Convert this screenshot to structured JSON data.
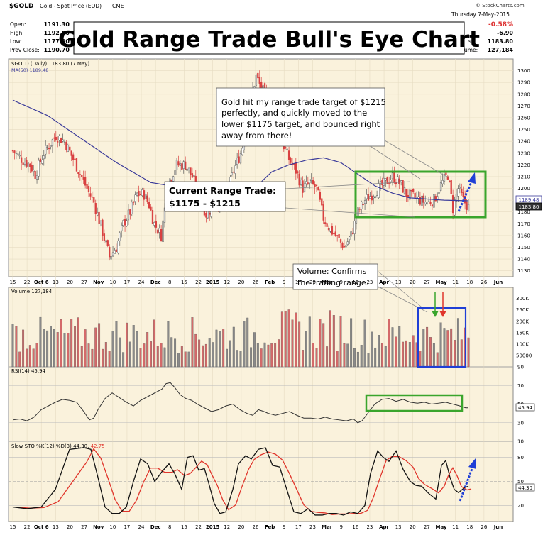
{
  "header": {
    "ticker": "$GOLD",
    "description": "Gold - Spot Price (EOD)",
    "exchange": "CME",
    "credit": "© StockCharts.com",
    "date": "Thursday  7-May-2015",
    "ohlc": [
      {
        "label": "Open:",
        "value": "1191.30"
      },
      {
        "label": "High:",
        "value": "1192.00"
      },
      {
        "label": "Low:",
        "value": "1177.90"
      },
      {
        "label": "Prev Close:",
        "value": "1190.70"
      }
    ],
    "change_pct": "-0.58%",
    "change": "-6.90",
    "last_label": "st:",
    "last": "1183.80",
    "volume_label": "ume:",
    "volume": "127,184"
  },
  "title": "Gold Range Trade Bull's Eye Chart",
  "legend": {
    "price": "$GOLD (Daily) 1183.80 (7 May)",
    "ma": "MA(50) 1189.48",
    "volume": "Volume 127,184",
    "rsi": "RSI(14) 45.94",
    "sto_a": "Slow STO %K(12) %D(3) 44.30, ",
    "sto_b": "42.75"
  },
  "annotations": {
    "target_lines": [
      "Gold hit my range trade target of $1215",
      "perfectly, and quickly moved to the",
      "lower $1175 target, and bounced right",
      "away from there!"
    ],
    "range_lines": [
      "Current Range Trade:",
      "$1175 - $1215"
    ],
    "volume_lines": [
      "Volume: Confirms",
      "the trading range."
    ]
  },
  "price_labels": {
    "ma": "1189.48",
    "last": "1183.80"
  },
  "rsi_label": "45.94",
  "sto_label": "44.30",
  "colors": {
    "panel": "#faf2dc",
    "up": "#5a5a5a",
    "down": "#d94040",
    "ma": "#3b3b9a",
    "green_box": "#3aa52c",
    "blue_box": "#1f3fd6",
    "arrow": "#1f3fd6",
    "rsi": "#333333",
    "stoK": "#111111",
    "stoD": "#e0352b",
    "vol_up": "#8a8a8a",
    "vol_down": "#d46a6a"
  },
  "chart_data": [
    {
      "type": "candlestick",
      "id": "price",
      "ylim": [
        1125,
        1310
      ],
      "y_ticks": [
        1130,
        1140,
        1150,
        1160,
        1170,
        1180,
        1190,
        1200,
        1210,
        1220,
        1230,
        1240,
        1250,
        1260,
        1270,
        1280,
        1290,
        1300
      ],
      "x_labels": [
        "15",
        "22",
        "Oct 6",
        "13",
        "20",
        "27",
        "Nov",
        "10",
        "17",
        "24",
        "Dec",
        "8",
        "15",
        "22",
        "2015",
        "12",
        "20",
        "26",
        "Feb",
        "9",
        "17",
        "23",
        "Mar",
        "9",
        "16",
        "23",
        "Apr",
        "13",
        "20",
        "27",
        "May",
        "11",
        "18",
        "26",
        "Jun"
      ],
      "close_points": [
        [
          0,
          1232
        ],
        [
          5,
          1225
        ],
        [
          10,
          1220
        ],
        [
          13,
          1212
        ],
        [
          18,
          1230
        ],
        [
          25,
          1245
        ],
        [
          30,
          1240
        ],
        [
          36,
          1222
        ],
        [
          42,
          1203
        ],
        [
          47,
          1188
        ],
        [
          52,
          1163
        ],
        [
          56,
          1142
        ],
        [
          60,
          1150
        ],
        [
          64,
          1170
        ],
        [
          68,
          1180
        ],
        [
          72,
          1195
        ],
        [
          76,
          1195
        ],
        [
          79,
          1186
        ],
        [
          82,
          1170
        ],
        [
          86,
          1160
        ],
        [
          90,
          1205
        ],
        [
          95,
          1220
        ],
        [
          100,
          1220
        ],
        [
          104,
          1210
        ],
        [
          108,
          1195
        ],
        [
          112,
          1178
        ],
        [
          116,
          1185
        ],
        [
          120,
          1190
        ],
        [
          124,
          1195
        ],
        [
          128,
          1215
        ],
        [
          132,
          1230
        ],
        [
          136,
          1252
        ],
        [
          138,
          1278
        ],
        [
          141,
          1295
        ],
        [
          144,
          1285
        ],
        [
          148,
          1275
        ],
        [
          152,
          1260
        ],
        [
          156,
          1240
        ],
        [
          160,
          1225
        ],
        [
          164,
          1215
        ],
        [
          168,
          1200
        ],
        [
          172,
          1205
        ],
        [
          176,
          1200
        ],
        [
          180,
          1175
        ],
        [
          184,
          1165
        ],
        [
          188,
          1158
        ],
        [
          192,
          1150
        ],
        [
          196,
          1160
        ],
        [
          200,
          1180
        ],
        [
          204,
          1190
        ],
        [
          208,
          1195
        ],
        [
          212,
          1200
        ],
        [
          216,
          1205
        ],
        [
          220,
          1210
        ],
        [
          224,
          1205
        ],
        [
          228,
          1195
        ],
        [
          232,
          1193
        ],
        [
          236,
          1190
        ],
        [
          240,
          1188
        ],
        [
          244,
          1190
        ],
        [
          248,
          1203
        ],
        [
          252,
          1212
        ],
        [
          255,
          1183
        ],
        [
          258,
          1200
        ],
        [
          261,
          1190
        ],
        [
          264,
          1184
        ]
      ],
      "ma50_points": [
        [
          0,
          1275
        ],
        [
          20,
          1262
        ],
        [
          40,
          1242
        ],
        [
          60,
          1222
        ],
        [
          80,
          1205
        ],
        [
          100,
          1200
        ],
        [
          120,
          1198
        ],
        [
          130,
          1197
        ],
        [
          140,
          1200
        ],
        [
          150,
          1214
        ],
        [
          160,
          1220
        ],
        [
          170,
          1224
        ],
        [
          180,
          1226
        ],
        [
          190,
          1222
        ],
        [
          200,
          1212
        ],
        [
          210,
          1202
        ],
        [
          220,
          1196
        ],
        [
          230,
          1192
        ],
        [
          240,
          1191
        ],
        [
          250,
          1190
        ],
        [
          264,
          1189.5
        ]
      ],
      "target_range": [
        1175,
        1215
      ]
    },
    {
      "type": "bar",
      "id": "volume",
      "y_ticks": [
        "300K",
        "250K",
        "200K",
        "150K",
        "100K",
        "50000"
      ],
      "ylim": [
        0,
        330000
      ]
    },
    {
      "type": "line",
      "id": "rsi",
      "ylim": [
        10,
        90
      ],
      "y_ticks": [
        90,
        70,
        50,
        30,
        10
      ],
      "points": [
        [
          0,
          33
        ],
        [
          10,
          34
        ],
        [
          20,
          32
        ],
        [
          30,
          36
        ],
        [
          40,
          44
        ],
        [
          50,
          48
        ],
        [
          60,
          52
        ],
        [
          70,
          55
        ],
        [
          80,
          54
        ],
        [
          90,
          52
        ],
        [
          100,
          42
        ],
        [
          108,
          33
        ],
        [
          114,
          35
        ],
        [
          120,
          44
        ],
        [
          130,
          56
        ],
        [
          140,
          62
        ],
        [
          150,
          57
        ],
        [
          160,
          52
        ],
        [
          170,
          48
        ],
        [
          180,
          54
        ],
        [
          190,
          58
        ],
        [
          200,
          62
        ],
        [
          210,
          66
        ],
        [
          216,
          72
        ],
        [
          222,
          73
        ],
        [
          228,
          68
        ],
        [
          236,
          60
        ],
        [
          244,
          56
        ],
        [
          252,
          54
        ],
        [
          260,
          50
        ],
        [
          270,
          46
        ],
        [
          280,
          42
        ],
        [
          290,
          44
        ],
        [
          300,
          48
        ],
        [
          310,
          50
        ],
        [
          320,
          44
        ],
        [
          330,
          40
        ],
        [
          338,
          38
        ],
        [
          346,
          44
        ],
        [
          354,
          42
        ],
        [
          360,
          40
        ],
        [
          370,
          38
        ],
        [
          380,
          40
        ],
        [
          390,
          42
        ],
        [
          400,
          38
        ],
        [
          410,
          35
        ],
        [
          420,
          35
        ],
        [
          430,
          34
        ],
        [
          440,
          36
        ],
        [
          450,
          34
        ],
        [
          460,
          33
        ],
        [
          470,
          32
        ],
        [
          480,
          34
        ],
        [
          486,
          30
        ],
        [
          492,
          32
        ],
        [
          500,
          40
        ],
        [
          510,
          50
        ],
        [
          520,
          55
        ],
        [
          530,
          56
        ],
        [
          540,
          53
        ],
        [
          550,
          55
        ],
        [
          560,
          52
        ],
        [
          570,
          51
        ],
        [
          580,
          52
        ],
        [
          590,
          50
        ],
        [
          600,
          51
        ],
        [
          610,
          52
        ],
        [
          620,
          50
        ],
        [
          630,
          48
        ],
        [
          638,
          46
        ],
        [
          642,
          46
        ]
      ]
    },
    {
      "type": "line",
      "id": "slow_sto",
      "ylim": [
        0,
        100
      ],
      "y_ticks": [
        80,
        50,
        20
      ]
    }
  ]
}
